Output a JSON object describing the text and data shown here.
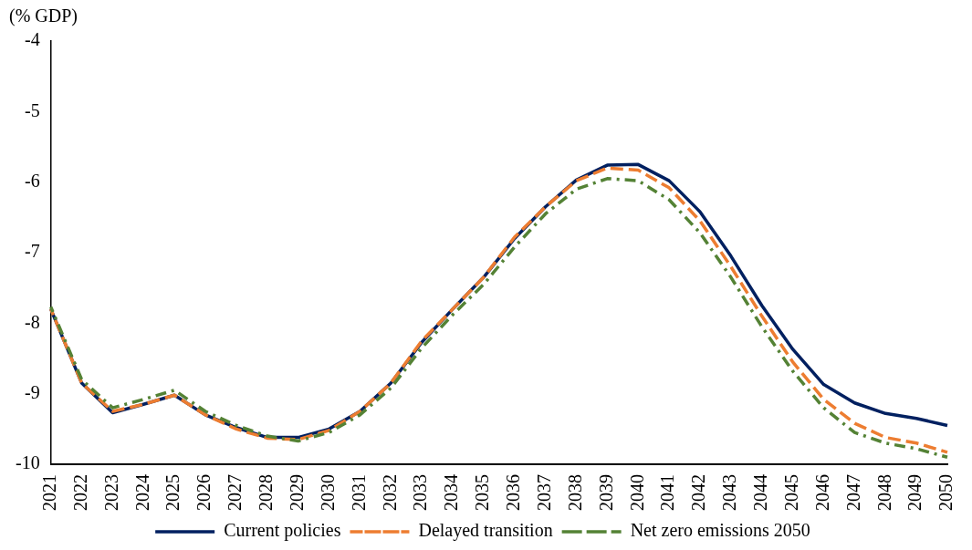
{
  "chart_data": {
    "type": "line",
    "ylabel": "(% GDP)",
    "categories": [
      "2021",
      "2022",
      "2023",
      "2024",
      "2025",
      "2026",
      "2027",
      "2028",
      "2029",
      "2030",
      "2031",
      "2032",
      "2033",
      "2034",
      "2035",
      "2036",
      "2037",
      "2038",
      "2039",
      "2040",
      "2041",
      "2042",
      "2043",
      "2044",
      "2045",
      "2046",
      "2047",
      "2048",
      "2049",
      "2050"
    ],
    "ylim": [
      -10,
      -4
    ],
    "yticks": [
      -10,
      -9,
      -8,
      -7,
      -6,
      -5,
      -4
    ],
    "grid": false,
    "legend": "bottom",
    "marker": "none",
    "series": [
      {
        "name": "Current policies",
        "color": "#002060",
        "line_style": "solid",
        "values": [
          -7.8,
          -8.85,
          -9.27,
          -9.15,
          -9.02,
          -9.3,
          -9.48,
          -9.62,
          -9.62,
          -9.5,
          -9.25,
          -8.85,
          -8.27,
          -7.8,
          -7.35,
          -6.8,
          -6.35,
          -5.97,
          -5.76,
          -5.75,
          -5.98,
          -6.42,
          -7.05,
          -7.75,
          -8.37,
          -8.87,
          -9.13,
          -9.28,
          -9.35,
          -9.45
        ]
      },
      {
        "name": "Delayed transition",
        "color": "#ed7d31",
        "line_style": "dashed",
        "values": [
          -7.8,
          -8.85,
          -9.25,
          -9.15,
          -9.02,
          -9.3,
          -9.5,
          -9.63,
          -9.65,
          -9.52,
          -9.25,
          -8.85,
          -8.25,
          -7.8,
          -7.35,
          -6.78,
          -6.35,
          -5.98,
          -5.8,
          -5.83,
          -6.08,
          -6.55,
          -7.2,
          -7.9,
          -8.55,
          -9.08,
          -9.42,
          -9.62,
          -9.7,
          -9.83
        ]
      },
      {
        "name": "Net zero emissions 2050",
        "color": "#548235",
        "line_style": "dashdot",
        "values": [
          -7.77,
          -8.8,
          -9.2,
          -9.08,
          -8.95,
          -9.25,
          -9.45,
          -9.6,
          -9.67,
          -9.55,
          -9.3,
          -8.92,
          -8.35,
          -7.88,
          -7.45,
          -6.92,
          -6.45,
          -6.1,
          -5.95,
          -5.98,
          -6.25,
          -6.72,
          -7.35,
          -8.05,
          -8.68,
          -9.2,
          -9.55,
          -9.7,
          -9.78,
          -9.9
        ]
      }
    ]
  }
}
